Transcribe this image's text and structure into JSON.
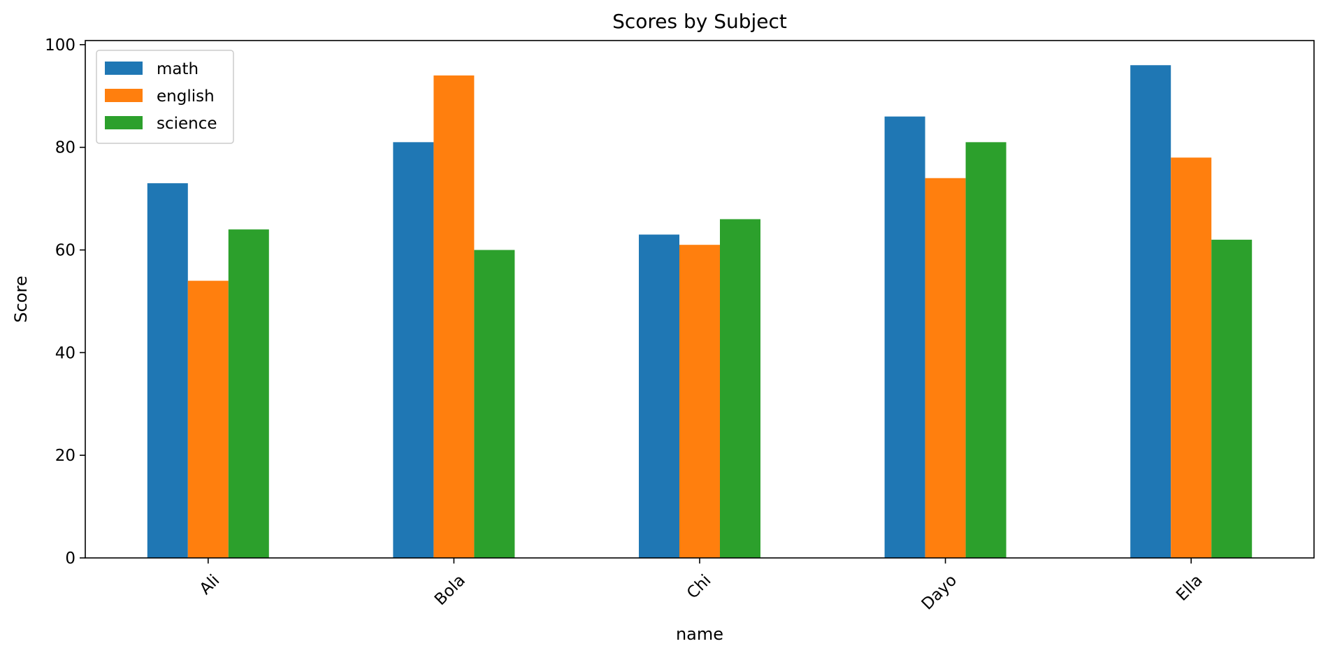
{
  "chart_data": {
    "type": "bar",
    "title": "Scores by Subject",
    "xlabel": "name",
    "ylabel": "Score",
    "categories": [
      "Ali",
      "Bola",
      "Chi",
      "Dayo",
      "Ella"
    ],
    "series": [
      {
        "name": "math",
        "color": "#1f77b4",
        "values": [
          73,
          81,
          63,
          86,
          96
        ]
      },
      {
        "name": "english",
        "color": "#ff7f0e",
        "values": [
          54,
          94,
          61,
          74,
          78
        ]
      },
      {
        "name": "science",
        "color": "#2ca02c",
        "values": [
          64,
          60,
          66,
          81,
          62
        ]
      }
    ],
    "ylim": [
      0,
      100.8
    ],
    "yticks": [
      0,
      20,
      40,
      60,
      80,
      100
    ],
    "grid": false,
    "legend_position": "top-left",
    "xtick_rotation": -45
  }
}
